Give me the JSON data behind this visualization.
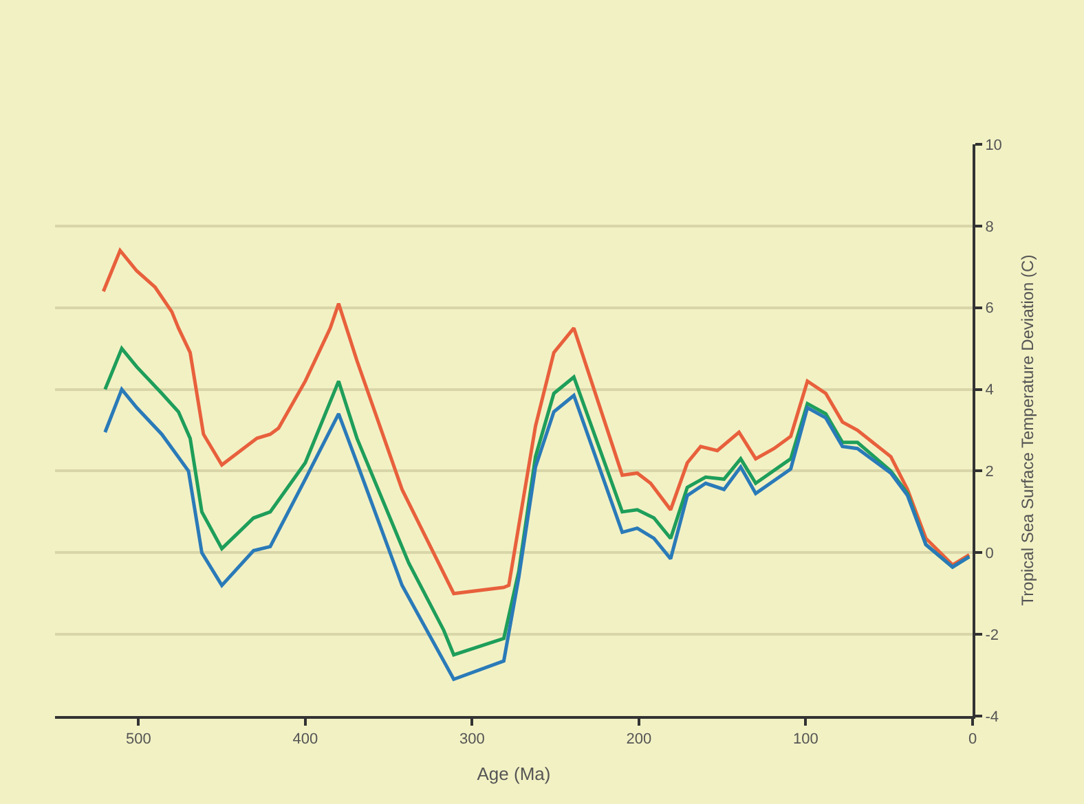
{
  "chart_data": {
    "type": "line",
    "xlabel": "Age (Ma)",
    "ylabel": "Tropical Sea Surface Temperature Deviation (C)",
    "xlim": [
      550,
      0
    ],
    "xticks": [
      500,
      400,
      300,
      200,
      100,
      0
    ],
    "ylim": [
      -4,
      10
    ],
    "yticks": [
      -4,
      -2,
      0,
      2,
      4,
      6,
      8,
      10
    ],
    "grid": "y",
    "marker": "none",
    "line_style": "solid",
    "series": [
      {
        "color": "#e8603c",
        "x": [
          521,
          511,
          501,
          490,
          480,
          476,
          469,
          461,
          450,
          429,
          421,
          416,
          400,
          385,
          380,
          369,
          342,
          311,
          281,
          278,
          262,
          251,
          239,
          210,
          201,
          193,
          181,
          171,
          163,
          153,
          140,
          130,
          119,
          109,
          99,
          88,
          78,
          69,
          49,
          39,
          28,
          12,
          2
        ],
        "values": [
          6.4,
          7.4,
          6.9,
          6.5,
          5.9,
          5.5,
          4.9,
          2.9,
          2.15,
          2.8,
          2.9,
          3.05,
          4.2,
          5.5,
          6.1,
          4.7,
          1.55,
          -1.0,
          -0.85,
          -0.8,
          3.1,
          4.9,
          5.5,
          1.9,
          1.95,
          1.7,
          1.05,
          2.2,
          2.6,
          2.5,
          2.95,
          2.3,
          2.55,
          2.85,
          4.2,
          3.9,
          3.2,
          3.0,
          2.35,
          1.55,
          0.35,
          -0.3,
          -0.05
        ]
      },
      {
        "color": "#1e9e5a",
        "x": [
          520,
          510,
          501,
          486,
          476,
          469,
          462,
          450,
          431,
          421,
          400,
          380,
          369,
          338,
          317,
          311,
          281,
          272,
          262,
          251,
          239,
          210,
          201,
          191,
          181,
          171,
          160,
          149,
          139,
          130,
          109,
          99,
          88,
          78,
          69,
          49,
          39,
          28,
          12,
          2
        ],
        "values": [
          4.0,
          5.0,
          4.55,
          3.9,
          3.45,
          2.8,
          1.0,
          0.1,
          0.85,
          1.0,
          2.2,
          4.2,
          2.8,
          -0.25,
          -1.9,
          -2.5,
          -2.1,
          -0.45,
          2.35,
          3.9,
          4.3,
          1.0,
          1.05,
          0.85,
          0.35,
          1.6,
          1.85,
          1.8,
          2.3,
          1.7,
          2.3,
          3.65,
          3.4,
          2.7,
          2.7,
          2.0,
          1.45,
          0.2,
          -0.35,
          -0.1
        ]
      },
      {
        "color": "#2a7ab8",
        "x": [
          520,
          510,
          501,
          486,
          470,
          462,
          450,
          431,
          421,
          400,
          380,
          369,
          342,
          311,
          281,
          272,
          262,
          251,
          239,
          210,
          201,
          191,
          181,
          171,
          160,
          149,
          139,
          130,
          109,
          99,
          88,
          78,
          69,
          49,
          39,
          28,
          12,
          2
        ],
        "values": [
          2.95,
          4.0,
          3.55,
          2.9,
          2.0,
          0.0,
          -0.8,
          0.05,
          0.15,
          1.8,
          3.4,
          2.2,
          -0.8,
          -3.1,
          -2.65,
          -0.6,
          2.1,
          3.45,
          3.85,
          0.5,
          0.6,
          0.35,
          -0.15,
          1.4,
          1.7,
          1.55,
          2.1,
          1.45,
          2.05,
          3.55,
          3.3,
          2.6,
          2.55,
          1.95,
          1.4,
          0.2,
          -0.35,
          -0.1
        ]
      }
    ]
  }
}
